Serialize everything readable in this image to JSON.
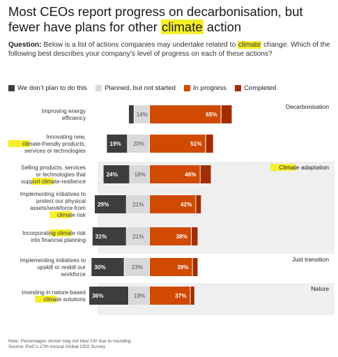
{
  "title": {
    "before": "Most CEOs report progress on decarbonisation, but fewer have plans for other ",
    "highlight": "climate",
    "after": " action"
  },
  "question": {
    "label": "Question:",
    "before": " Below is a list of actions companies may undertake related to ",
    "highlight": "climate",
    "after": " change. Which of the following best describes your company’s level of progress on each of these actions?"
  },
  "legend": [
    {
      "label": "We don’t plan to do this",
      "color": "#3d3d3d"
    },
    {
      "label": "Planned, but not started",
      "color": "#d9d9d9"
    },
    {
      "label": "In progress",
      "color": "#d04a02"
    },
    {
      "label": "Completed",
      "color": "#a32d00"
    }
  ],
  "footnote": [
    "Note: Percentages shown may not total 100 due to rounding.",
    "Source: PwC’s 27th Annual Global CEO Survey"
  ],
  "chart_data": {
    "type": "bar",
    "orientation": "horizontal",
    "stacked": true,
    "units": "%",
    "series_names": [
      "We don’t plan to do this",
      "Planned, but not started",
      "In progress",
      "Completed"
    ],
    "groups": [
      {
        "name": "Decarbonisation",
        "highlight": ""
      },
      {
        "name": " adaptation",
        "highlight": "Climate"
      },
      {
        "name": "Just transition",
        "highlight": ""
      },
      {
        "name": "Nature",
        "highlight": ""
      }
    ],
    "rows": [
      {
        "group": 0,
        "label": [
          [
            "Improving energy",
            ""
          ],
          [
            "efficiency",
            ""
          ]
        ],
        "values": [
          5,
          14,
          65,
          10
        ],
        "shown": [
          "",
          "14%",
          "65%",
          ""
        ]
      },
      {
        "group": 0,
        "label": [
          [
            "Innovating new,",
            ""
          ],
          [
            "",
            "climate"
          ],
          [
            "-friendly products,",
            ""
          ],
          [
            "services or technologies",
            ""
          ]
        ],
        "lineBreaks": [
          0,
          2,
          3
        ],
        "values": [
          19,
          20,
          51,
          7
        ],
        "shown": [
          "19%",
          "20%",
          "51%",
          ""
        ]
      },
      {
        "group": 1,
        "label": [
          [
            "Selling products, services",
            ""
          ],
          [
            "or technologies that",
            ""
          ],
          [
            "support ",
            ""
          ],
          [
            "",
            "climate"
          ],
          [
            "-resilience",
            ""
          ]
        ],
        "lineBreaks": [
          0,
          1,
          4
        ],
        "values": [
          24,
          18,
          46,
          10
        ],
        "shown": [
          "24%",
          "18%",
          "46%",
          ""
        ]
      },
      {
        "group": 1,
        "label": [
          [
            "Implementing initiatives to",
            ""
          ],
          [
            "protect our physical",
            ""
          ],
          [
            "assets/workforce from",
            ""
          ],
          [
            "",
            "climate"
          ],
          [
            " risk",
            ""
          ]
        ],
        "lineBreaks": [
          0,
          1,
          2,
          4
        ],
        "values": [
          29,
          21,
          42,
          5
        ],
        "shown": [
          "29%",
          "21%",
          "42%",
          ""
        ]
      },
      {
        "group": 1,
        "label": [
          [
            "Incorporating ",
            ""
          ],
          [
            "",
            "climate"
          ],
          [
            " risk",
            ""
          ],
          [
            "into financial planning",
            ""
          ]
        ],
        "lineBreaks": [
          2,
          3
        ],
        "values": [
          31,
          21,
          38,
          6
        ],
        "shown": [
          "31%",
          "21%",
          "38%",
          ""
        ]
      },
      {
        "group": 2,
        "label": [
          [
            "Implementing initiatives to",
            ""
          ],
          [
            "upskill or reskill our",
            ""
          ],
          [
            "workforce",
            ""
          ]
        ],
        "values": [
          30,
          23,
          39,
          5
        ],
        "shown": [
          "30%",
          "23%",
          "39%",
          ""
        ]
      },
      {
        "group": 3,
        "label": [
          [
            "Investing in nature-based",
            ""
          ],
          [
            "",
            "climate"
          ],
          [
            " solutions",
            ""
          ]
        ],
        "lineBreaks": [
          0,
          2
        ],
        "values": [
          36,
          19,
          37,
          4
        ],
        "shown": [
          "36%",
          "19%",
          "37%",
          ""
        ]
      }
    ],
    "colors": {
      "no_plan": "#3d3d3d",
      "planned": "#d9d9d9",
      "in_progress": "#d04a02",
      "completed": "#a32d00",
      "highlight": "#f6ee2a",
      "group_band": "#efefef"
    }
  }
}
